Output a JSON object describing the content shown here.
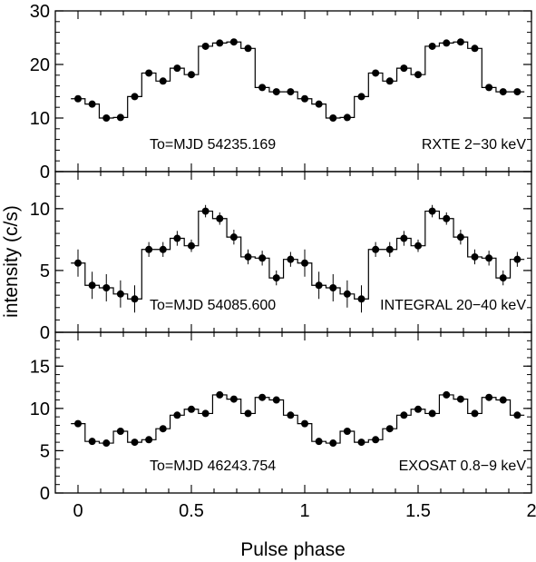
{
  "chart_data": {
    "type": "line",
    "shared_xlabel": "Pulse phase",
    "shared_ylabel": "intensity (c/s)",
    "x_ticks": [
      "0",
      "0.5",
      "1",
      "1.5",
      "2"
    ],
    "xlim": [
      -0.1,
      2.0
    ],
    "panels": [
      {
        "name": "RXTE",
        "annotation_left": "To=MJD 54235.169",
        "annotation_right": "RXTE 2−30 keV",
        "ylim": [
          0,
          30
        ],
        "y_tick_values": [
          0,
          10,
          20,
          30
        ],
        "y_tick_labels": [
          "0",
          "10",
          "20",
          "30"
        ],
        "series": [
          {
            "x": [
              0,
              0.0625,
              0.125,
              0.1875,
              0.25,
              0.3125,
              0.375,
              0.4375,
              0.5,
              0.5625,
              0.625,
              0.6875,
              0.75,
              0.8125,
              0.875,
              0.9375,
              1.0,
              1.0625,
              1.125,
              1.1875,
              1.25,
              1.3125,
              1.375,
              1.4375,
              1.5,
              1.5625,
              1.625,
              1.6875,
              1.75,
              1.8125,
              1.875,
              1.9375
            ],
            "y": [
              13.6,
              12.6,
              10.0,
              10.1,
              14.0,
              18.4,
              16.9,
              19.3,
              18.1,
              23.4,
              24.0,
              24.2,
              23.0,
              15.7,
              14.9,
              14.9,
              13.6,
              12.6,
              10.0,
              10.1,
              14.0,
              18.4,
              16.9,
              19.3,
              18.1,
              23.4,
              24.0,
              24.2,
              23.0,
              15.7,
              14.9,
              14.9
            ],
            "yerr": [
              0.3,
              0.3,
              0.3,
              0.3,
              0.3,
              0.3,
              0.3,
              0.3,
              0.3,
              0.3,
              0.3,
              0.3,
              0.3,
              0.3,
              0.3,
              0.3,
              0.3,
              0.3,
              0.3,
              0.3,
              0.3,
              0.3,
              0.3,
              0.3,
              0.3,
              0.3,
              0.3,
              0.3,
              0.3,
              0.3,
              0.3,
              0.3
            ]
          }
        ]
      },
      {
        "name": "INTEGRAL",
        "annotation_left": "To=MJD 54085.600",
        "annotation_right": "INTEGRAL 20−40 keV",
        "ylim": [
          0,
          13
        ],
        "y_tick_values": [
          0,
          5,
          10
        ],
        "y_tick_labels": [
          "0",
          "5",
          "10"
        ],
        "series": [
          {
            "x": [
              0,
              0.0625,
              0.125,
              0.1875,
              0.25,
              0.3125,
              0.375,
              0.4375,
              0.5,
              0.5625,
              0.625,
              0.6875,
              0.75,
              0.8125,
              0.875,
              0.9375,
              1.0,
              1.0625,
              1.125,
              1.1875,
              1.25,
              1.3125,
              1.375,
              1.4375,
              1.5,
              1.5625,
              1.625,
              1.6875,
              1.75,
              1.8125,
              1.875,
              1.9375
            ],
            "y": [
              5.6,
              3.8,
              3.6,
              3.1,
              2.7,
              6.7,
              6.7,
              7.6,
              7.0,
              9.8,
              9.2,
              7.7,
              6.1,
              6.0,
              4.4,
              5.9,
              5.6,
              3.8,
              3.6,
              3.1,
              2.7,
              6.7,
              6.7,
              7.6,
              7.0,
              9.8,
              9.2,
              7.7,
              6.1,
              6.0,
              4.4,
              5.9
            ],
            "yerr": [
              1.1,
              1.1,
              1.1,
              1.1,
              1.1,
              0.6,
              0.6,
              0.6,
              0.5,
              0.5,
              0.5,
              0.6,
              0.6,
              0.6,
              0.6,
              0.6,
              1.1,
              1.1,
              1.1,
              1.1,
              1.1,
              0.6,
              0.6,
              0.6,
              0.5,
              0.5,
              0.5,
              0.6,
              0.6,
              0.6,
              0.6,
              0.6
            ]
          }
        ]
      },
      {
        "name": "EXOSAT",
        "annotation_left": "To=MJD 46243.754",
        "annotation_right": "EXOSAT 0.8−9 keV",
        "ylim": [
          0,
          19
        ],
        "y_tick_values": [
          0,
          5,
          10,
          15
        ],
        "y_tick_labels": [
          "0",
          "5",
          "10",
          "15"
        ],
        "series": [
          {
            "x": [
              0,
              0.0625,
              0.125,
              0.1875,
              0.25,
              0.3125,
              0.375,
              0.4375,
              0.5,
              0.5625,
              0.625,
              0.6875,
              0.75,
              0.8125,
              0.875,
              0.9375,
              1.0,
              1.0625,
              1.125,
              1.1875,
              1.25,
              1.3125,
              1.375,
              1.4375,
              1.5,
              1.5625,
              1.625,
              1.6875,
              1.75,
              1.8125,
              1.875,
              1.9375
            ],
            "y": [
              8.2,
              6.1,
              5.9,
              7.3,
              6.0,
              6.3,
              7.6,
              9.2,
              9.9,
              9.4,
              11.6,
              11.1,
              9.4,
              11.3,
              11.0,
              9.2,
              8.2,
              6.1,
              5.9,
              7.3,
              6.0,
              6.3,
              7.6,
              9.2,
              9.9,
              9.4,
              11.6,
              11.1,
              9.4,
              11.3,
              11.0,
              9.2
            ],
            "yerr": [
              0.2,
              0.2,
              0.2,
              0.2,
              0.2,
              0.2,
              0.2,
              0.2,
              0.2,
              0.2,
              0.2,
              0.2,
              0.2,
              0.2,
              0.2,
              0.2,
              0.2,
              0.2,
              0.2,
              0.2,
              0.2,
              0.2,
              0.2,
              0.2,
              0.2,
              0.2,
              0.2,
              0.2,
              0.2,
              0.2,
              0.2,
              0.2
            ]
          }
        ]
      }
    ]
  }
}
